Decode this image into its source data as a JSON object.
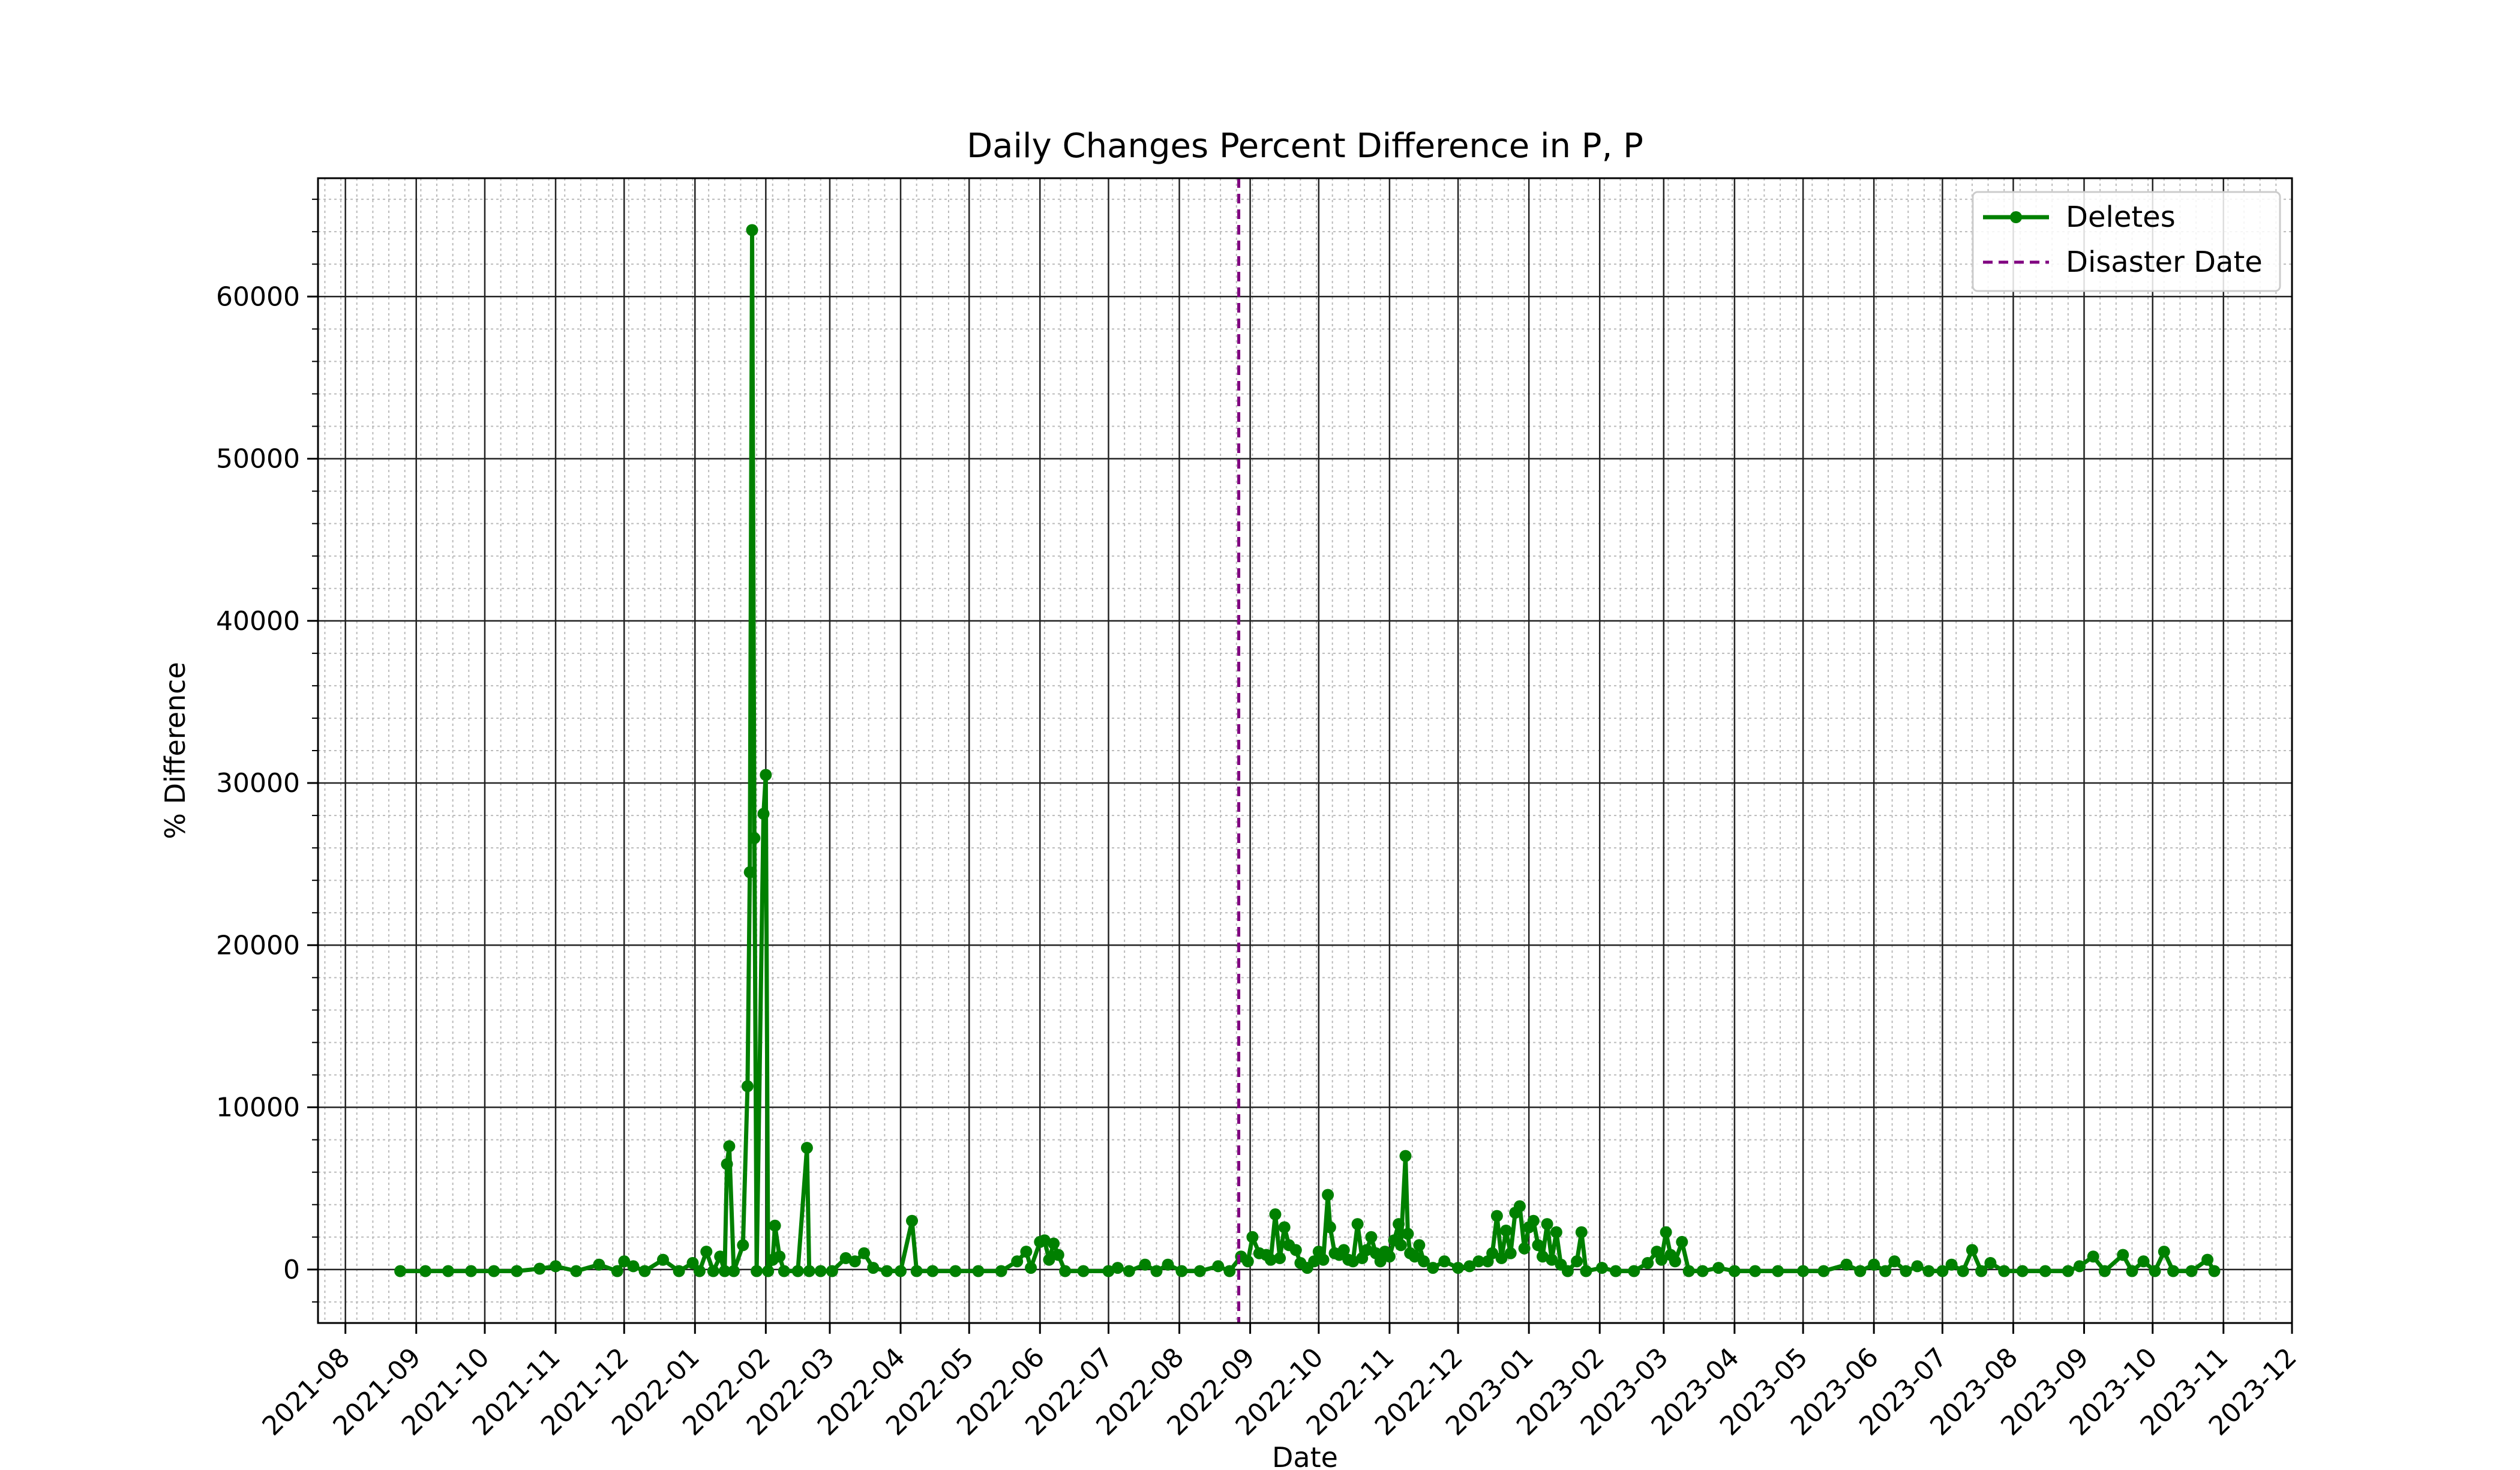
{
  "chart_data": {
    "type": "line",
    "title": "Daily Changes Percent Difference in P, P",
    "xlabel": "Date",
    "ylabel": "% Difference",
    "xlim": [
      "2021-07-20",
      "2023-12-01"
    ],
    "ylim": [
      -3300,
      67300
    ],
    "yticks": [
      0,
      10000,
      20000,
      30000,
      40000,
      50000,
      60000
    ],
    "xticks": [
      "2021-08",
      "2021-09",
      "2021-10",
      "2021-11",
      "2021-12",
      "2022-01",
      "2022-02",
      "2022-03",
      "2022-04",
      "2022-05",
      "2022-06",
      "2022-07",
      "2022-08",
      "2022-09",
      "2022-10",
      "2022-11",
      "2022-12",
      "2023-01",
      "2023-02",
      "2023-03",
      "2023-04",
      "2023-05",
      "2023-06",
      "2023-07",
      "2023-08",
      "2023-09",
      "2023-10",
      "2023-11",
      "2023-12"
    ],
    "grid": true,
    "minor_grid": true,
    "legend_position": "upper right",
    "series": [
      {
        "name": "Deletes",
        "color": "#008000",
        "marker": "circle",
        "points": [
          [
            "2021-08-25",
            -100
          ],
          [
            "2021-09-05",
            -100
          ],
          [
            "2021-09-15",
            -100
          ],
          [
            "2021-09-25",
            -100
          ],
          [
            "2021-10-05",
            -100
          ],
          [
            "2021-10-15",
            -100
          ],
          [
            "2021-10-25",
            50
          ],
          [
            "2021-11-01",
            200
          ],
          [
            "2021-11-10",
            -100
          ],
          [
            "2021-11-20",
            300
          ],
          [
            "2021-11-28",
            -100
          ],
          [
            "2021-12-01",
            500
          ],
          [
            "2021-12-05",
            200
          ],
          [
            "2021-12-10",
            -100
          ],
          [
            "2021-12-18",
            600
          ],
          [
            "2021-12-25",
            -100
          ],
          [
            "2021-12-31",
            400
          ],
          [
            "2022-01-03",
            -100
          ],
          [
            "2022-01-06",
            1100
          ],
          [
            "2022-01-09",
            -100
          ],
          [
            "2022-01-12",
            800
          ],
          [
            "2022-01-14",
            -100
          ],
          [
            "2022-01-15",
            6500
          ],
          [
            "2022-01-16",
            7600
          ],
          [
            "2022-01-18",
            -100
          ],
          [
            "2022-01-22",
            1500
          ],
          [
            "2022-01-24",
            11300
          ],
          [
            "2022-01-25",
            24500
          ],
          [
            "2022-01-26",
            64100
          ],
          [
            "2022-01-27",
            26600
          ],
          [
            "2022-01-28",
            -100
          ],
          [
            "2022-01-31",
            28100
          ],
          [
            "2022-02-01",
            30500
          ],
          [
            "2022-02-02",
            -100
          ],
          [
            "2022-02-04",
            600
          ],
          [
            "2022-02-05",
            2700
          ],
          [
            "2022-02-07",
            800
          ],
          [
            "2022-02-09",
            -100
          ],
          [
            "2022-02-15",
            -100
          ],
          [
            "2022-02-19",
            7500
          ],
          [
            "2022-02-20",
            -100
          ],
          [
            "2022-02-25",
            -100
          ],
          [
            "2022-03-02",
            -100
          ],
          [
            "2022-03-08",
            700
          ],
          [
            "2022-03-12",
            500
          ],
          [
            "2022-03-16",
            1000
          ],
          [
            "2022-03-20",
            100
          ],
          [
            "2022-03-26",
            -100
          ],
          [
            "2022-04-01",
            -100
          ],
          [
            "2022-04-06",
            3000
          ],
          [
            "2022-04-08",
            -100
          ],
          [
            "2022-04-15",
            -100
          ],
          [
            "2022-04-25",
            -100
          ],
          [
            "2022-05-05",
            -100
          ],
          [
            "2022-05-15",
            -100
          ],
          [
            "2022-05-22",
            500
          ],
          [
            "2022-05-26",
            1100
          ],
          [
            "2022-05-28",
            100
          ],
          [
            "2022-06-01",
            1700
          ],
          [
            "2022-06-03",
            1800
          ],
          [
            "2022-06-05",
            600
          ],
          [
            "2022-06-07",
            1600
          ],
          [
            "2022-06-09",
            900
          ],
          [
            "2022-06-12",
            -100
          ],
          [
            "2022-06-20",
            -100
          ],
          [
            "2022-07-01",
            -100
          ],
          [
            "2022-07-05",
            100
          ],
          [
            "2022-07-10",
            -100
          ],
          [
            "2022-07-17",
            300
          ],
          [
            "2022-07-22",
            -100
          ],
          [
            "2022-07-27",
            300
          ],
          [
            "2022-08-02",
            -100
          ],
          [
            "2022-08-10",
            -100
          ],
          [
            "2022-08-18",
            200
          ],
          [
            "2022-08-23",
            -100
          ],
          [
            "2022-08-28",
            800
          ],
          [
            "2022-08-31",
            500
          ],
          [
            "2022-09-02",
            2000
          ],
          [
            "2022-09-05",
            1000
          ],
          [
            "2022-09-08",
            900
          ],
          [
            "2022-09-10",
            600
          ],
          [
            "2022-09-12",
            3400
          ],
          [
            "2022-09-14",
            700
          ],
          [
            "2022-09-16",
            2600
          ],
          [
            "2022-09-18",
            1500
          ],
          [
            "2022-09-21",
            1200
          ],
          [
            "2022-09-23",
            400
          ],
          [
            "2022-09-26",
            100
          ],
          [
            "2022-09-29",
            500
          ],
          [
            "2022-10-01",
            1100
          ],
          [
            "2022-10-03",
            600
          ],
          [
            "2022-10-05",
            4600
          ],
          [
            "2022-10-06",
            2600
          ],
          [
            "2022-10-08",
            1000
          ],
          [
            "2022-10-10",
            900
          ],
          [
            "2022-10-12",
            1200
          ],
          [
            "2022-10-14",
            600
          ],
          [
            "2022-10-16",
            500
          ],
          [
            "2022-10-18",
            2800
          ],
          [
            "2022-10-20",
            700
          ],
          [
            "2022-10-22",
            1200
          ],
          [
            "2022-10-24",
            2000
          ],
          [
            "2022-10-26",
            1000
          ],
          [
            "2022-10-28",
            500
          ],
          [
            "2022-10-30",
            1100
          ],
          [
            "2022-11-01",
            800
          ],
          [
            "2022-11-03",
            1800
          ],
          [
            "2022-11-05",
            2800
          ],
          [
            "2022-11-06",
            1500
          ],
          [
            "2022-11-08",
            7000
          ],
          [
            "2022-11-09",
            2200
          ],
          [
            "2022-11-10",
            1000
          ],
          [
            "2022-11-12",
            800
          ],
          [
            "2022-11-14",
            1500
          ],
          [
            "2022-11-16",
            500
          ],
          [
            "2022-11-20",
            100
          ],
          [
            "2022-11-25",
            500
          ],
          [
            "2022-12-01",
            100
          ],
          [
            "2022-12-06",
            200
          ],
          [
            "2022-12-10",
            500
          ],
          [
            "2022-12-14",
            500
          ],
          [
            "2022-12-16",
            1000
          ],
          [
            "2022-12-18",
            3300
          ],
          [
            "2022-12-20",
            700
          ],
          [
            "2022-12-22",
            2400
          ],
          [
            "2022-12-24",
            1000
          ],
          [
            "2022-12-26",
            3500
          ],
          [
            "2022-12-28",
            3900
          ],
          [
            "2022-12-30",
            1300
          ],
          [
            "2023-01-01",
            2600
          ],
          [
            "2023-01-03",
            3000
          ],
          [
            "2023-01-05",
            1500
          ],
          [
            "2023-01-07",
            800
          ],
          [
            "2023-01-09",
            2800
          ],
          [
            "2023-01-11",
            600
          ],
          [
            "2023-01-13",
            2300
          ],
          [
            "2023-01-15",
            300
          ],
          [
            "2023-01-18",
            -100
          ],
          [
            "2023-01-22",
            500
          ],
          [
            "2023-01-24",
            2300
          ],
          [
            "2023-01-26",
            -100
          ],
          [
            "2023-02-02",
            100
          ],
          [
            "2023-02-08",
            -100
          ],
          [
            "2023-02-16",
            -100
          ],
          [
            "2023-02-22",
            400
          ],
          [
            "2023-02-26",
            1100
          ],
          [
            "2023-02-28",
            600
          ],
          [
            "2023-03-02",
            2300
          ],
          [
            "2023-03-04",
            900
          ],
          [
            "2023-03-06",
            500
          ],
          [
            "2023-03-09",
            1700
          ],
          [
            "2023-03-12",
            -100
          ],
          [
            "2023-03-18",
            -100
          ],
          [
            "2023-03-25",
            100
          ],
          [
            "2023-04-01",
            -100
          ],
          [
            "2023-04-10",
            -100
          ],
          [
            "2023-04-20",
            -100
          ],
          [
            "2023-05-01",
            -100
          ],
          [
            "2023-05-10",
            -100
          ],
          [
            "2023-05-20",
            300
          ],
          [
            "2023-05-26",
            -100
          ],
          [
            "2023-06-01",
            300
          ],
          [
            "2023-06-06",
            -100
          ],
          [
            "2023-06-10",
            500
          ],
          [
            "2023-06-15",
            -100
          ],
          [
            "2023-06-20",
            200
          ],
          [
            "2023-06-25",
            -100
          ],
          [
            "2023-07-01",
            -100
          ],
          [
            "2023-07-05",
            300
          ],
          [
            "2023-07-10",
            -100
          ],
          [
            "2023-07-14",
            1200
          ],
          [
            "2023-07-18",
            -100
          ],
          [
            "2023-07-22",
            400
          ],
          [
            "2023-07-28",
            -100
          ],
          [
            "2023-08-05",
            -100
          ],
          [
            "2023-08-15",
            -100
          ],
          [
            "2023-08-25",
            -100
          ],
          [
            "2023-08-30",
            200
          ],
          [
            "2023-09-05",
            800
          ],
          [
            "2023-09-10",
            -100
          ],
          [
            "2023-09-18",
            900
          ],
          [
            "2023-09-22",
            -100
          ],
          [
            "2023-09-27",
            500
          ],
          [
            "2023-10-02",
            -100
          ],
          [
            "2023-10-06",
            1100
          ],
          [
            "2023-10-10",
            -100
          ],
          [
            "2023-10-18",
            -100
          ],
          [
            "2023-10-25",
            600
          ],
          [
            "2023-10-28",
            -100
          ]
        ]
      },
      {
        "name": "Disaster Date",
        "color": "#800080",
        "linestyle": "dashed",
        "x": "2022-08-27"
      }
    ]
  }
}
